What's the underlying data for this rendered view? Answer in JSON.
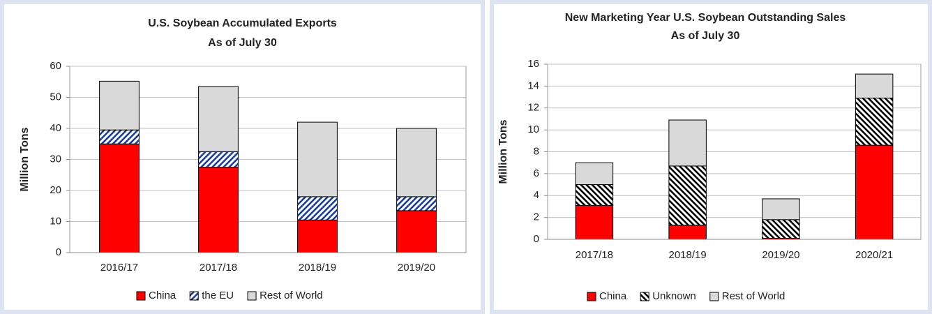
{
  "chart_data": [
    {
      "type": "bar",
      "stacked": true,
      "title": [
        "U.S. Soybean Accumulated Exports",
        "As of July 30"
      ],
      "y_label": "Million Tons",
      "categories": [
        "2016/17",
        "2017/18",
        "2018/19",
        "2019/20"
      ],
      "series": [
        {
          "name": "China",
          "color": "#ff0000",
          "values": [
            35,
            27.5,
            10.5,
            13.5
          ]
        },
        {
          "name": "the EU",
          "color": "#1f3f8f",
          "pattern": "hatch-up",
          "values": [
            4.5,
            5,
            7.5,
            4.5
          ]
        },
        {
          "name": "Rest of World",
          "color": "#d9d9d9",
          "values": [
            15.7,
            21,
            24,
            22
          ]
        }
      ],
      "ylim": [
        0,
        60
      ],
      "yticks": [
        0,
        10,
        20,
        30,
        40,
        50,
        60
      ],
      "grid": true,
      "legend": "bottom"
    },
    {
      "type": "bar",
      "stacked": true,
      "title": [
        "New Marketing Year U.S. Soybean Outstanding Sales",
        "As of July 30"
      ],
      "y_label": "Million Tons",
      "categories": [
        "2017/18",
        "2018/19",
        "2019/20",
        "2020/21"
      ],
      "series": [
        {
          "name": "China",
          "color": "#ff0000",
          "values": [
            3.1,
            1.3,
            0.1,
            8.6
          ]
        },
        {
          "name": "Unknown",
          "color": "#000000",
          "pattern": "hatch-down",
          "values": [
            1.9,
            5.4,
            1.7,
            4.3
          ]
        },
        {
          "name": "Rest of World",
          "color": "#d9d9d9",
          "values": [
            2.0,
            4.2,
            1.9,
            2.2
          ]
        }
      ],
      "ylim": [
        0,
        16
      ],
      "yticks": [
        0,
        2,
        4,
        6,
        8,
        10,
        12,
        14,
        16
      ],
      "grid": true,
      "legend": "bottom"
    }
  ]
}
